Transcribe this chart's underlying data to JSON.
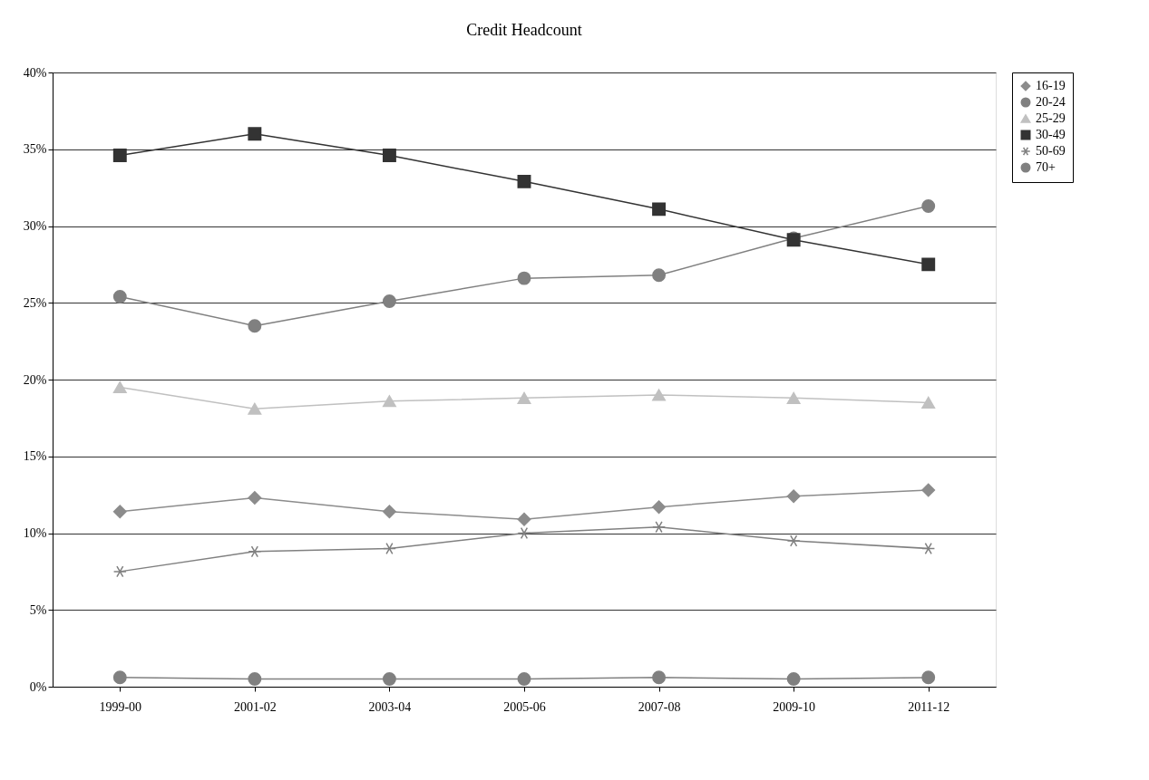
{
  "chart_data": {
    "type": "line",
    "title": "Credit Headcount",
    "categories": [
      "1999-00",
      "2001-02",
      "2003-04",
      "2005-06",
      "2007-08",
      "2009-10",
      "2011-12"
    ],
    "series": [
      {
        "name": "16-19",
        "color": "#8c8c8c",
        "marker": "diamond",
        "values": [
          11.4,
          12.3,
          11.4,
          10.9,
          11.7,
          12.4,
          12.8
        ]
      },
      {
        "name": "20-24",
        "color": "#808080",
        "marker": "circle",
        "values": [
          25.4,
          23.5,
          25.1,
          26.6,
          26.8,
          29.2,
          31.3
        ]
      },
      {
        "name": "25-29",
        "color": "#c0c0c0",
        "marker": "triangle",
        "values": [
          19.5,
          18.1,
          18.6,
          18.8,
          19.0,
          18.8,
          18.5
        ]
      },
      {
        "name": "30-49",
        "color": "#333333",
        "marker": "square",
        "values": [
          34.6,
          36.0,
          34.6,
          32.9,
          31.1,
          29.1,
          27.5
        ]
      },
      {
        "name": "50-69",
        "color": "#808080",
        "marker": "cross",
        "values": [
          7.5,
          8.8,
          9.0,
          10.0,
          10.4,
          9.5,
          9.0
        ]
      },
      {
        "name": "70+",
        "color": "#808080",
        "marker": "circle",
        "values": [
          0.6,
          0.5,
          0.5,
          0.5,
          0.6,
          0.5,
          0.6
        ]
      }
    ],
    "ylim": [
      0,
      40
    ],
    "yticks": [
      {
        "value": 0,
        "label": "0%"
      },
      {
        "value": 5,
        "label": "5%"
      },
      {
        "value": 10,
        "label": "10%"
      },
      {
        "value": 15,
        "label": "15%"
      },
      {
        "value": 20,
        "label": "20%"
      },
      {
        "value": 25,
        "label": "25%"
      },
      {
        "value": 30,
        "label": "30%"
      },
      {
        "value": 35,
        "label": "35%"
      },
      {
        "value": 40,
        "label": "40%"
      }
    ],
    "grid": "y",
    "legend": "right",
    "line_style": "solid"
  }
}
